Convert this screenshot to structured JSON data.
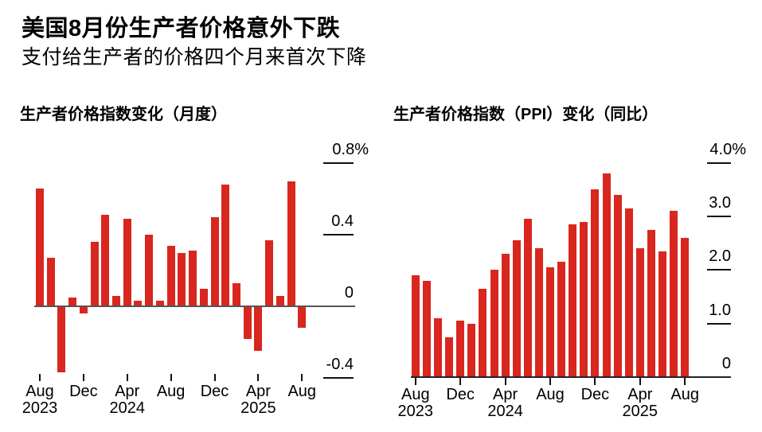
{
  "page": {
    "title": "美国8月份生产者价格意外下跌",
    "subtitle": "支付给生产者的价格四个月来首次下降"
  },
  "charts": {
    "monthly": {
      "title": "生产者价格指数变化（月度）"
    },
    "yoy": {
      "title": "生产者价格指数（PPI）变化（同比）"
    }
  },
  "colors": {
    "bar_red": "#d9261e",
    "axis_monthly": "#555555",
    "axis_yoy": "#222222",
    "tick_black": "#111111"
  },
  "chart_data": [
    {
      "id": "monthly",
      "type": "bar",
      "title": "生产者价格指数变化（月度）",
      "unit": "% month-over-month",
      "categories": [
        "Aug 2023",
        "Sep 2023",
        "Oct 2023",
        "Nov 2023",
        "Dec 2023",
        "Jan 2024",
        "Feb 2024",
        "Mar 2024",
        "Apr 2024",
        "May 2024",
        "Jun 2024",
        "Jul 2024",
        "Aug 2024",
        "Sep 2024",
        "Oct 2024",
        "Nov 2024",
        "Dec 2024",
        "Jan 2025",
        "Feb 2025",
        "Mar 2025",
        "Apr 2025",
        "May 2025",
        "Jun 2025",
        "Jul 2025",
        "Aug 2025"
      ],
      "values": [
        0.66,
        0.27,
        -0.37,
        0.05,
        -0.04,
        0.36,
        0.51,
        0.06,
        0.49,
        0.03,
        0.4,
        0.03,
        0.34,
        0.3,
        0.31,
        0.1,
        0.5,
        0.68,
        0.13,
        -0.18,
        -0.25,
        0.37,
        0.06,
        0.7,
        -0.12
      ],
      "y_ticks": [
        {
          "label": "0.8%",
          "value": 0.8
        },
        {
          "label": "0.4",
          "value": 0.4
        },
        {
          "label": "0",
          "value": 0
        },
        {
          "label": "-0.4",
          "value": -0.4
        }
      ],
      "x_ticks": [
        {
          "index": 0,
          "month": "Aug",
          "year": "2023"
        },
        {
          "index": 4,
          "month": "Dec"
        },
        {
          "index": 8,
          "month": "Apr",
          "year": "2024"
        },
        {
          "index": 12,
          "month": "Aug"
        },
        {
          "index": 16,
          "month": "Dec"
        },
        {
          "index": 20,
          "month": "Apr",
          "year": "2025"
        },
        {
          "index": 24,
          "month": "Aug"
        }
      ],
      "ylim": [
        -0.5,
        0.87
      ],
      "grid": false,
      "legend": "none",
      "bar_color": "#d9261e"
    },
    {
      "id": "yoy",
      "type": "bar",
      "title": "生产者价格指数（PPI）变化（同比）",
      "unit": "% year-over-year",
      "categories": [
        "Aug 2023",
        "Sep 2023",
        "Oct 2023",
        "Nov 2023",
        "Dec 2023",
        "Jan 2024",
        "Feb 2024",
        "Mar 2024",
        "Apr 2024",
        "May 2024",
        "Jun 2024",
        "Jul 2024",
        "Aug 2024",
        "Sep 2024",
        "Oct 2024",
        "Nov 2024",
        "Dec 2024",
        "Jan 2025",
        "Feb 2025",
        "Mar 2025",
        "Apr 2025",
        "May 2025",
        "Jun 2025",
        "Jul 2025",
        "Aug 2025"
      ],
      "values": [
        1.9,
        1.8,
        1.1,
        0.75,
        1.05,
        1.0,
        1.65,
        2.0,
        2.3,
        2.55,
        2.95,
        2.4,
        2.05,
        2.15,
        2.85,
        2.9,
        3.5,
        3.8,
        3.4,
        3.15,
        2.4,
        2.75,
        2.35,
        3.1,
        2.6
      ],
      "y_ticks": [
        {
          "label": "4.0%",
          "value": 4
        },
        {
          "label": "3.0",
          "value": 3
        },
        {
          "label": "2.0",
          "value": 2
        },
        {
          "label": "1.0",
          "value": 1
        },
        {
          "label": "0",
          "value": 0
        }
      ],
      "x_ticks": [
        {
          "index": 0,
          "month": "Aug",
          "year": "2023"
        },
        {
          "index": 4,
          "month": "Dec"
        },
        {
          "index": 8,
          "month": "Apr",
          "year": "2024"
        },
        {
          "index": 12,
          "month": "Aug"
        },
        {
          "index": 16,
          "month": "Dec"
        },
        {
          "index": 20,
          "month": "Apr",
          "year": "2025"
        },
        {
          "index": 24,
          "month": "Aug"
        }
      ],
      "ylim": [
        0,
        4.35
      ],
      "grid": false,
      "legend": "none",
      "bar_color": "#d9261e"
    }
  ]
}
